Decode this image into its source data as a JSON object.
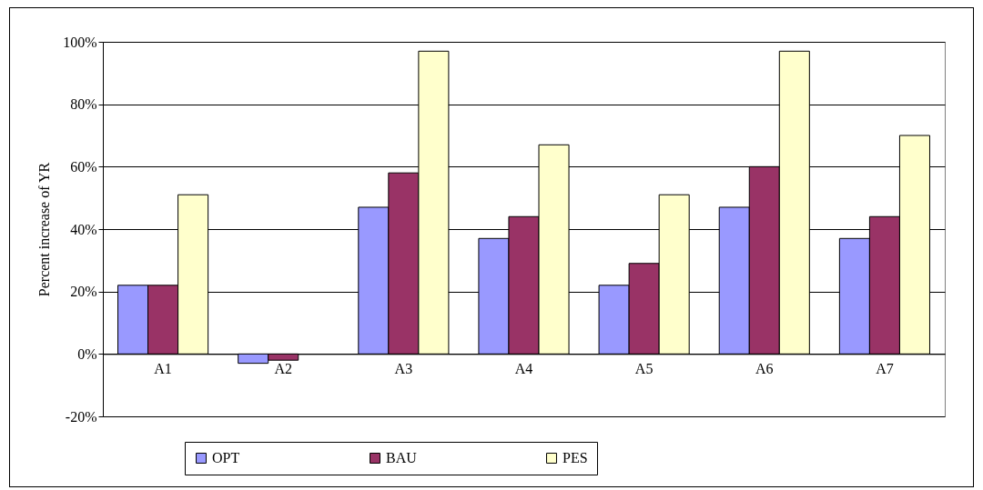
{
  "chart_data": {
    "type": "bar",
    "ylabel": "Percent increase of YR",
    "categories": [
      "A1",
      "A2",
      "A3",
      "A4",
      "A5",
      "A6",
      "A7"
    ],
    "series": [
      {
        "name": "OPT",
        "color": "#9999ff",
        "values": [
          22,
          -3,
          47,
          37,
          22,
          47,
          37
        ]
      },
      {
        "name": "BAU",
        "color": "#993366",
        "values": [
          22,
          -2,
          58,
          44,
          29,
          60,
          44
        ]
      },
      {
        "name": "PES",
        "color": "#ffffcc",
        "values": [
          51,
          null,
          97,
          67,
          51,
          97,
          70
        ]
      }
    ],
    "ylim": [
      -20,
      100
    ],
    "yticks": [
      {
        "value": -20,
        "label": "-20%"
      },
      {
        "value": 0,
        "label": "0%"
      },
      {
        "value": 20,
        "label": "20%"
      },
      {
        "value": 40,
        "label": "40%"
      },
      {
        "value": 60,
        "label": "60%"
      },
      {
        "value": 80,
        "label": "80%"
      },
      {
        "value": 100,
        "label": "100%"
      }
    ],
    "grid": "y",
    "legend": "bottom"
  }
}
